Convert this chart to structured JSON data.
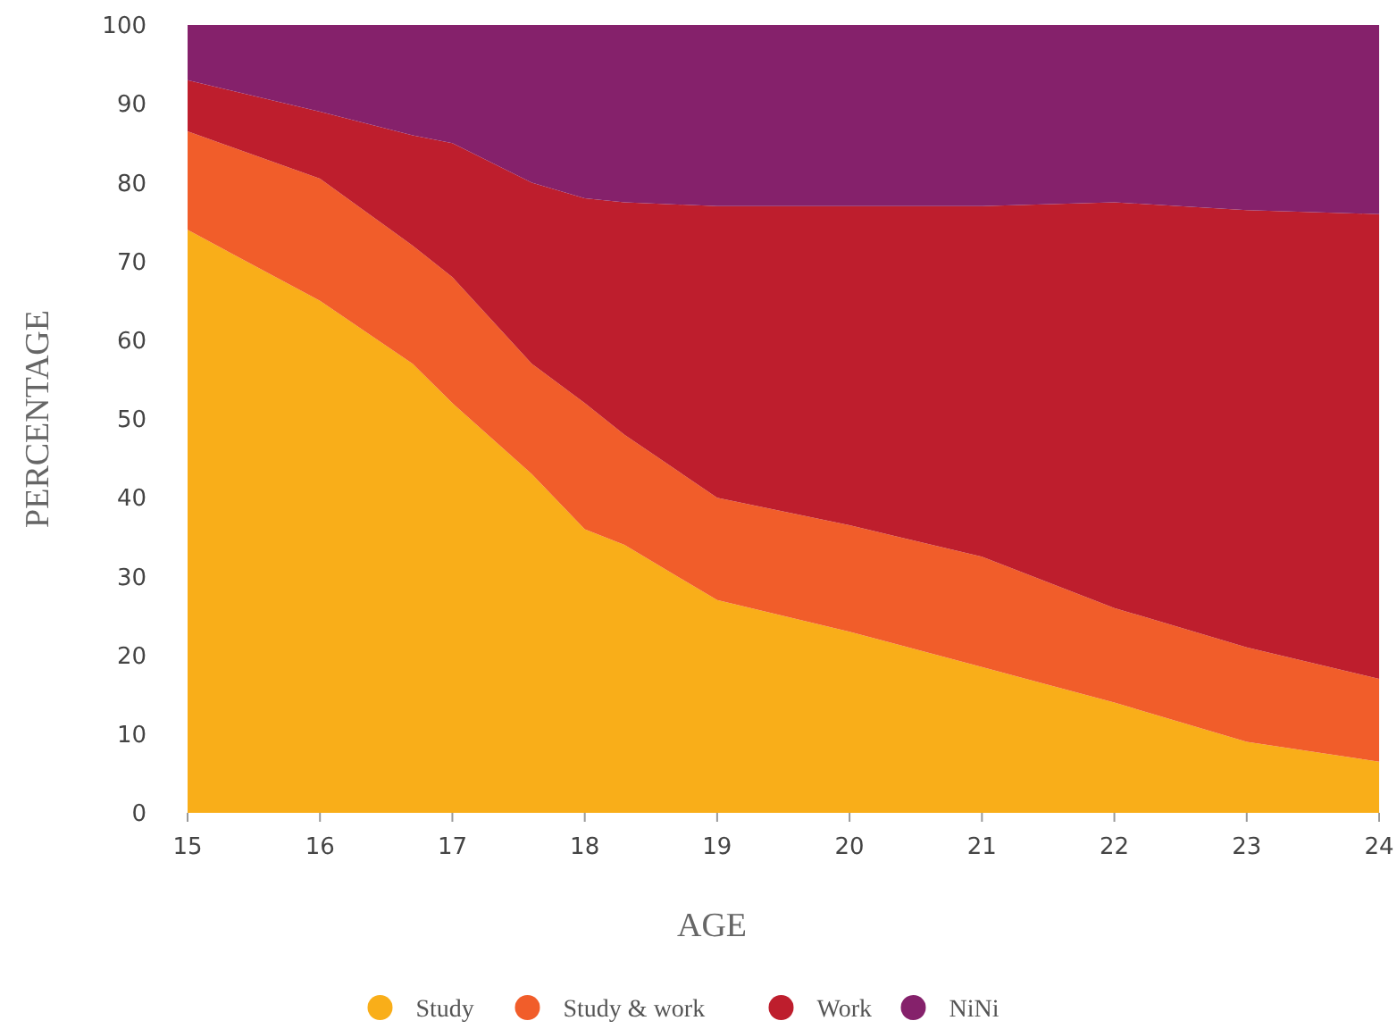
{
  "chart_data": {
    "type": "area",
    "stacked": true,
    "xlabel": "AGE",
    "ylabel": "PERCENTAGE",
    "x": [
      15,
      16,
      16.7,
      17,
      17.6,
      18,
      18.3,
      19,
      20,
      21,
      22,
      23,
      24
    ],
    "series": [
      {
        "name": "Study",
        "color": "#f9ae19",
        "values": [
          74,
          65,
          57,
          52,
          43,
          36,
          34,
          27,
          23,
          18.5,
          14,
          9,
          6.5
        ]
      },
      {
        "name": "Study & work",
        "color": "#f15d2a",
        "values": [
          12.5,
          15.5,
          15,
          16,
          14,
          16,
          14,
          13,
          13.5,
          14,
          12,
          12,
          10.5
        ]
      },
      {
        "name": "Work",
        "color": "#be1e2d",
        "values": [
          6.5,
          8.5,
          14,
          17,
          23,
          26,
          29.5,
          37,
          40.5,
          44.5,
          51.5,
          55.5,
          59
        ]
      },
      {
        "name": "NiNi",
        "color": "#85216b",
        "values": [
          7,
          11,
          14,
          15,
          20,
          22,
          22.5,
          23,
          23,
          23,
          22.5,
          23.5,
          24
        ]
      }
    ],
    "xlim": [
      15,
      24
    ],
    "xticks": [
      15,
      16,
      17,
      18,
      19,
      20,
      21,
      22,
      23,
      24
    ],
    "ylim": [
      0,
      100
    ],
    "yticks": [
      0,
      10,
      20,
      30,
      40,
      50,
      60,
      70,
      80,
      90,
      100
    ],
    "grid": false,
    "legend": "bottom"
  }
}
